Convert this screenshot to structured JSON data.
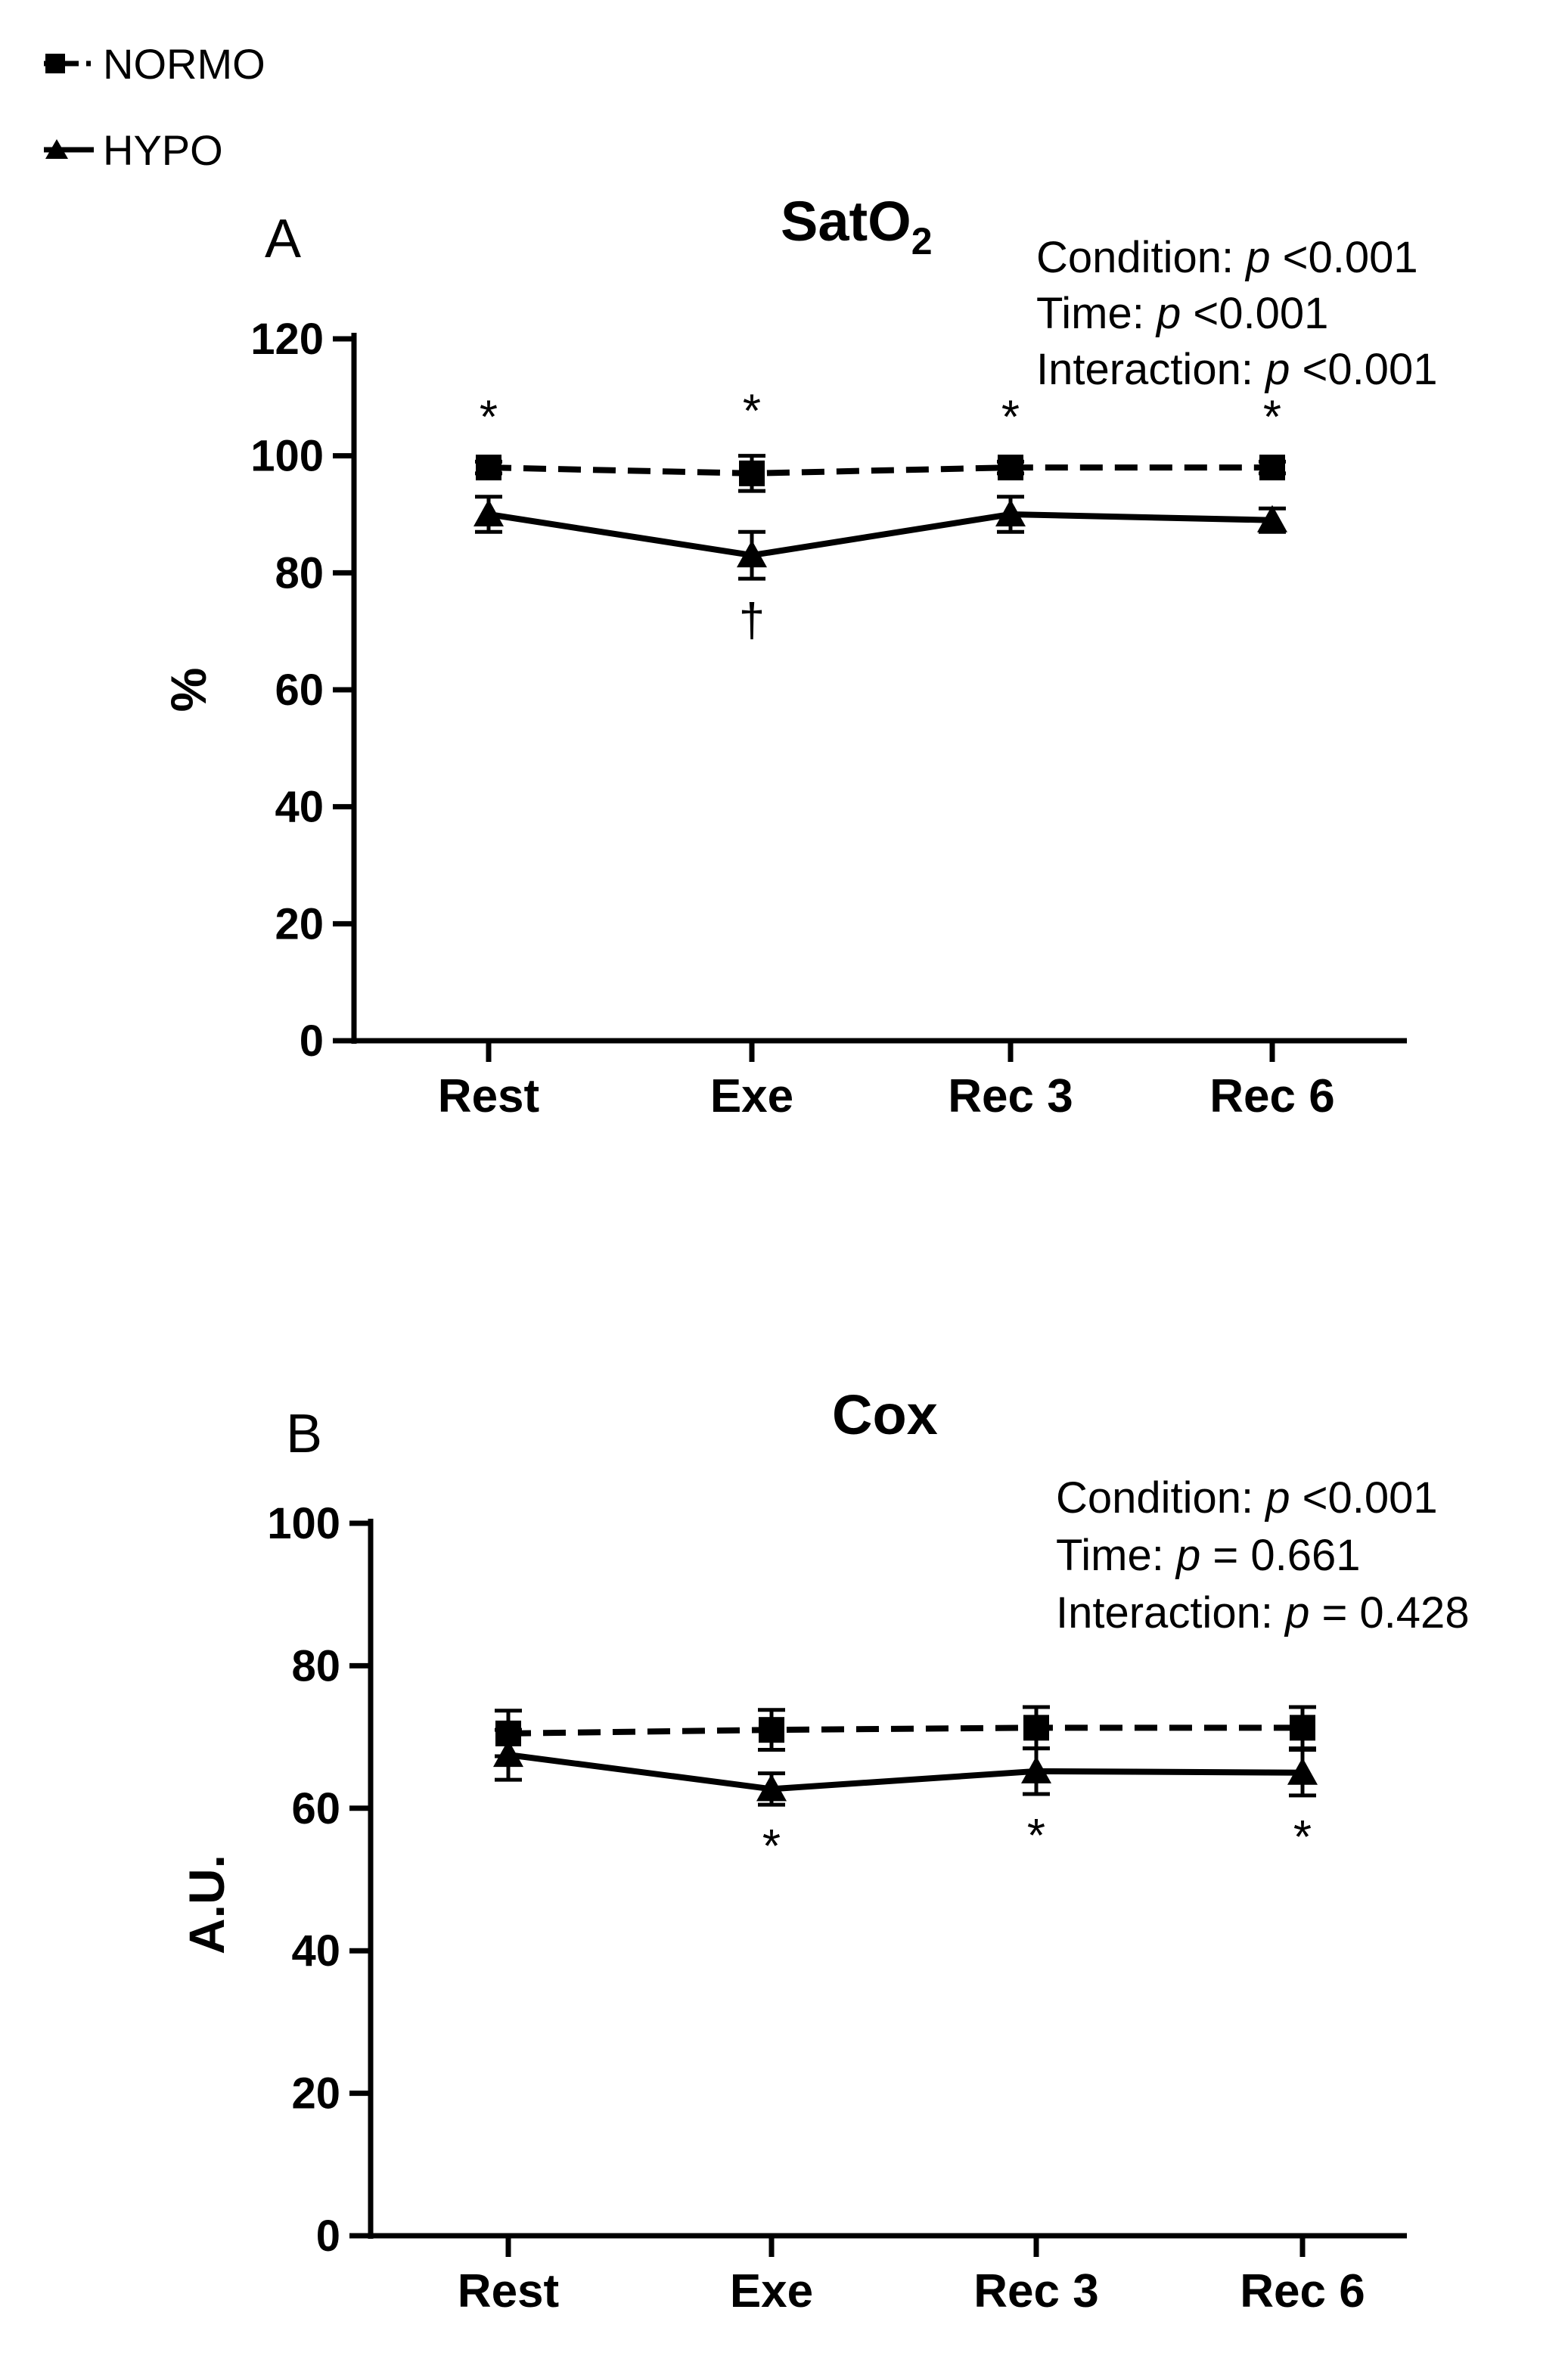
{
  "legend": [
    {
      "name": "NORMO",
      "marker": "square",
      "dash": true
    },
    {
      "name": "HYPO",
      "marker": "triangle",
      "dash": false
    }
  ],
  "chart_data": [
    {
      "type": "line",
      "panel": "A",
      "title": "SatO",
      "title_sub": "2",
      "xlabel": "",
      "ylabel": "%",
      "ylim": [
        0,
        120
      ],
      "yticks": [
        0,
        20,
        40,
        60,
        80,
        100,
        120
      ],
      "categories": [
        "Rest",
        "Exe",
        "Rec 3",
        "Rec 6"
      ],
      "series": [
        {
          "name": "NORMO",
          "values": [
            98,
            97,
            98,
            98
          ],
          "errors": [
            1,
            3,
            1,
            1
          ]
        },
        {
          "name": "HYPO",
          "values": [
            90,
            83,
            90,
            89
          ],
          "errors": [
            3,
            4,
            3,
            2
          ]
        }
      ],
      "stats": [
        {
          "label": "Condition: ",
          "p": "p",
          "value": " <0.001"
        },
        {
          "label": "Time: ",
          "p": "p",
          "value": " <0.001"
        },
        {
          "label": "Interaction: ",
          "p": "p",
          "value": " <0.001"
        }
      ],
      "annotations": [
        {
          "text": "*",
          "category": "Rest",
          "position": "above"
        },
        {
          "text": "*",
          "category": "Exe",
          "position": "above"
        },
        {
          "text": "*",
          "category": "Rec 3",
          "position": "above"
        },
        {
          "text": "*",
          "category": "Rec 6",
          "position": "above"
        },
        {
          "text": "†",
          "category": "Exe",
          "position": "below"
        }
      ]
    },
    {
      "type": "line",
      "panel": "B",
      "title": "Cox",
      "title_sub": "",
      "xlabel": "",
      "ylabel": "A.U.",
      "ylim": [
        0,
        100
      ],
      "yticks": [
        0,
        20,
        40,
        60,
        80,
        100
      ],
      "categories": [
        "Rest",
        "Exe",
        "Rec 3",
        "Rec 6"
      ],
      "series": [
        {
          "name": "NORMO",
          "values": [
            70.5,
            71,
            71.3,
            71.3
          ],
          "errors": [
            3.2,
            2.8,
            2.9,
            2.9
          ]
        },
        {
          "name": "HYPO",
          "values": [
            67.5,
            62.7,
            65.2,
            65
          ],
          "errors": [
            3.5,
            2.2,
            3.2,
            3.2
          ]
        }
      ],
      "stats": [
        {
          "label": "Condition: ",
          "p": "p",
          "value": " <0.001"
        },
        {
          "label": "Time: ",
          "p": "p",
          "value": " = 0.661"
        },
        {
          "label": "Interaction: ",
          "p": "p",
          "value": " = 0.428"
        }
      ],
      "annotations": [
        {
          "text": "*",
          "category": "Exe",
          "position": "below"
        },
        {
          "text": "*",
          "category": "Rec 3",
          "position": "below"
        },
        {
          "text": "*",
          "category": "Rec 6",
          "position": "below"
        }
      ]
    }
  ]
}
